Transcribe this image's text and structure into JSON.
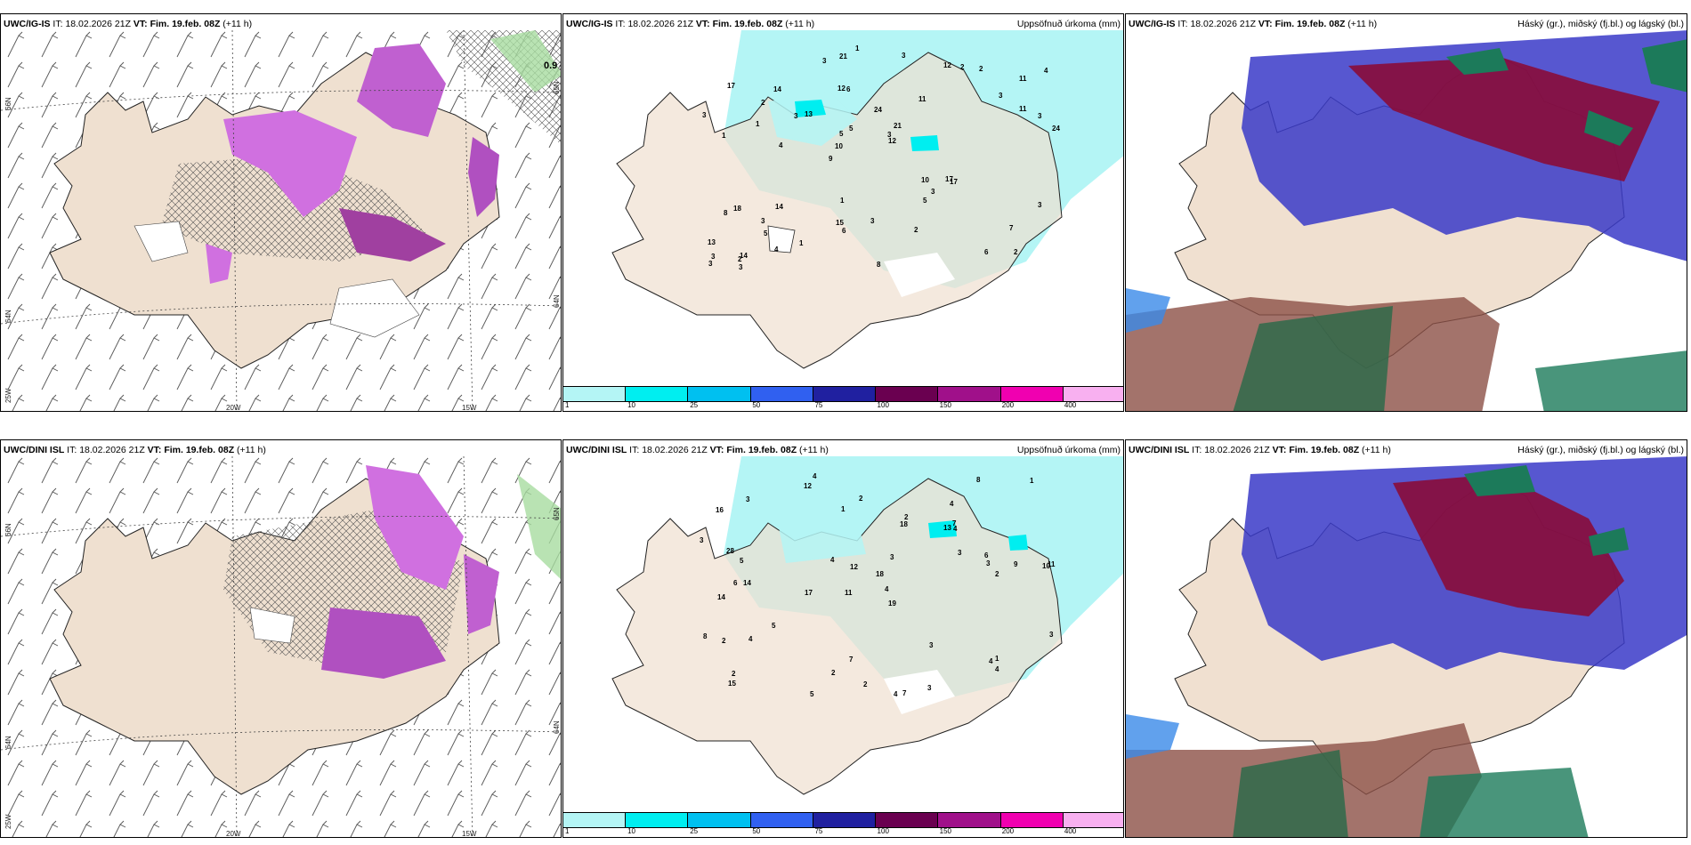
{
  "panels": [
    {
      "model": "UWC/IG-IS",
      "it_label": "IT:",
      "it_value": "18.02.2026 21Z",
      "vt_label": "VT: Fim. 19.feb. 08Z",
      "lead": "(+11 h)",
      "right_title": "",
      "lat_labels": [
        "66N",
        "64N",
        "65N",
        "64N"
      ],
      "lon_labels": [
        "25W",
        "20W",
        "15W"
      ],
      "corner_value": "0.9"
    },
    {
      "model": "UWC/IG-IS",
      "it_label": "IT:",
      "it_value": "18.02.2026 21Z",
      "vt_label": "VT: Fim. 19.feb. 08Z",
      "lead": "(+11 h)",
      "right_title": "Uppsöfnuð úrkoma (mm)"
    },
    {
      "model": "UWC/IG-IS",
      "it_label": "IT:",
      "it_value": "18.02.2026 21Z",
      "vt_label": "VT: Fim. 19.feb. 08Z",
      "lead": "(+11 h)",
      "right_title": "Háský (gr.), miðský (fj.bl.) og lágský (bl.)"
    },
    {
      "model": "UWC/DINI ISL",
      "it_label": "IT:",
      "it_value": "18.02.2026 21Z",
      "vt_label": "VT: Fim. 19.feb. 08Z",
      "lead": "(+11 h)",
      "right_title": "",
      "lat_labels": [
        "66N",
        "64N",
        "65N",
        "64N"
      ],
      "lon_labels": [
        "25W",
        "20W",
        "15W"
      ]
    },
    {
      "model": "UWC/DINI ISL",
      "it_label": "IT:",
      "it_value": "18.02.2026 21Z",
      "vt_label": "VT: Fim. 19.feb. 08Z",
      "lead": "(+11 h)",
      "right_title": "Uppsöfnuð úrkoma (mm)"
    },
    {
      "model": "UWC/DINI ISL",
      "it_label": "IT:",
      "it_value": "18.02.2026 21Z",
      "vt_label": "VT: Fim. 19.feb. 08Z",
      "lead": "(+11 h)",
      "right_title": "Háský (gr.), miðský (fj.bl.) og lágský (bl.)"
    }
  ],
  "precip_colorbar": {
    "ticks": [
      "1",
      "10",
      "25",
      "50",
      "75",
      "100",
      "150",
      "200",
      "400"
    ],
    "colors": [
      "#b4f5f5",
      "#00eef0",
      "#00c0f0",
      "#3060f0",
      "#2020a0",
      "#6a0050",
      "#a0108a",
      "#f000b0",
      "#f8b0f0"
    ]
  },
  "precip_values_top": [
    "2",
    "1",
    "11",
    "9",
    "11",
    "14",
    "12",
    "24",
    "18",
    "13",
    "13",
    "5",
    "6",
    "21",
    "17",
    "17",
    "21",
    "24",
    "10",
    "11",
    "10",
    "15",
    "5",
    "14",
    "12",
    "14",
    "6",
    "7",
    "17",
    "8",
    "3",
    "1",
    "5",
    "4",
    "3",
    "3",
    "3",
    "6",
    "12",
    "8",
    "3",
    "4",
    "3",
    "2",
    "3",
    "3",
    "3",
    "3",
    "2",
    "1",
    "4",
    "3",
    "2",
    "2",
    "2",
    "3",
    "3",
    "5",
    "3",
    "1",
    "1"
  ],
  "precip_values_bottom": [
    "4",
    "4",
    "10",
    "11",
    "19",
    "14",
    "16",
    "13",
    "14",
    "18",
    "18",
    "15",
    "12",
    "17",
    "4",
    "7",
    "7",
    "8",
    "3",
    "5",
    "5",
    "6",
    "11",
    "9",
    "8",
    "28",
    "12",
    "3",
    "1",
    "2",
    "4",
    "2",
    "4",
    "4",
    "3",
    "3",
    "6",
    "2",
    "1",
    "2",
    "2",
    "5",
    "3",
    "3",
    "2",
    "4",
    "4",
    "7",
    "3",
    "4",
    "1",
    "2",
    "3"
  ],
  "cloud_colors": {
    "high": "#8a0c38",
    "mid": "#1c7a5a",
    "low": "#3a3ac8",
    "land": "#f0e0d0"
  }
}
